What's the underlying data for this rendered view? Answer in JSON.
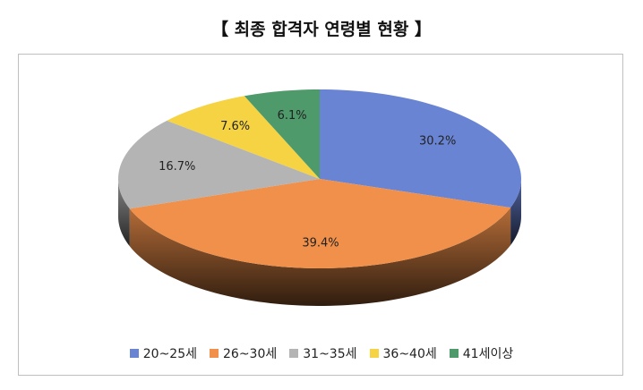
{
  "chart_data": {
    "type": "pie3d",
    "title": "【 최종 합격자 연령별 현황 】",
    "categories": [
      "20~25세",
      "26~30세",
      "31~35세",
      "36~40세",
      "41세이상"
    ],
    "values": [
      30.2,
      39.4,
      16.7,
      7.6,
      6.1
    ],
    "value_labels": [
      "30.2%",
      "39.4%",
      "16.7%",
      "7.6%",
      "6.1%"
    ],
    "colors": [
      "#6a84d4",
      "#f0904a",
      "#b4b4b4",
      "#f5d342",
      "#4e9a6a"
    ],
    "legend": "bottom"
  }
}
